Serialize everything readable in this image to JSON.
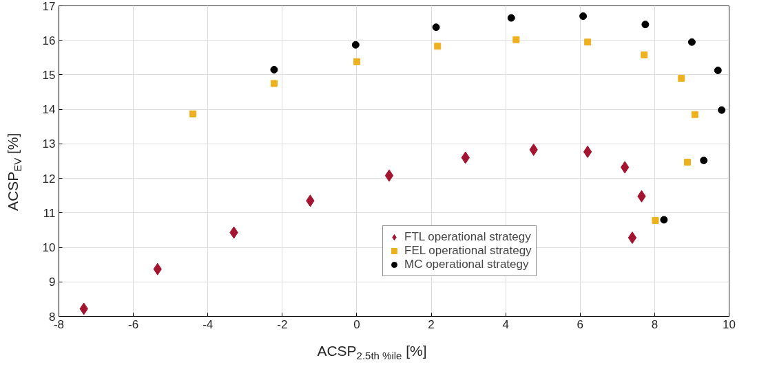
{
  "chart_data": {
    "type": "scatter",
    "xlabel": "ACSP$_{2.5th %ile}$ [%]",
    "ylabel": "ACSP$_{EV}$ [%]",
    "xlim": [
      -8,
      10
    ],
    "xticks": [
      -8,
      -6,
      -4,
      -2,
      0,
      2,
      4,
      6,
      8,
      10
    ],
    "ylim": [
      8,
      17
    ],
    "yticks": [
      8,
      9,
      10,
      11,
      12,
      13,
      14,
      15,
      16,
      17
    ],
    "grid": true,
    "legend": "bottom",
    "series": [
      {
        "name": "FTL operational strategy",
        "color": "#a2142f",
        "marker": "diamond",
        "x": [
          -7.33,
          -5.35,
          -3.3,
          -1.25,
          0.87,
          2.92,
          4.75,
          6.2,
          7.2,
          7.65,
          7.4
        ],
        "values": [
          8.22,
          9.37,
          10.43,
          11.35,
          12.08,
          12.6,
          12.83,
          12.77,
          12.32,
          11.48,
          10.28
        ]
      },
      {
        "name": "FEL operational strategy",
        "color": "#edb120",
        "marker": "square",
        "x": [
          -4.4,
          -2.22,
          0.0,
          2.17,
          4.28,
          6.2,
          7.72,
          8.72,
          9.08,
          8.88,
          8.02
        ],
        "values": [
          13.87,
          14.75,
          15.38,
          15.83,
          16.02,
          15.95,
          15.58,
          14.9,
          13.85,
          12.47,
          10.78
        ]
      },
      {
        "name": "MC operational strategy",
        "color": "#000000",
        "marker": "circle",
        "x": [
          -2.22,
          -0.03,
          2.13,
          4.15,
          6.08,
          7.75,
          9.0,
          9.7,
          9.8,
          9.32,
          8.25
        ],
        "values": [
          15.15,
          15.87,
          16.38,
          16.65,
          16.7,
          16.46,
          15.95,
          15.13,
          13.98,
          12.52,
          10.8
        ]
      }
    ]
  }
}
